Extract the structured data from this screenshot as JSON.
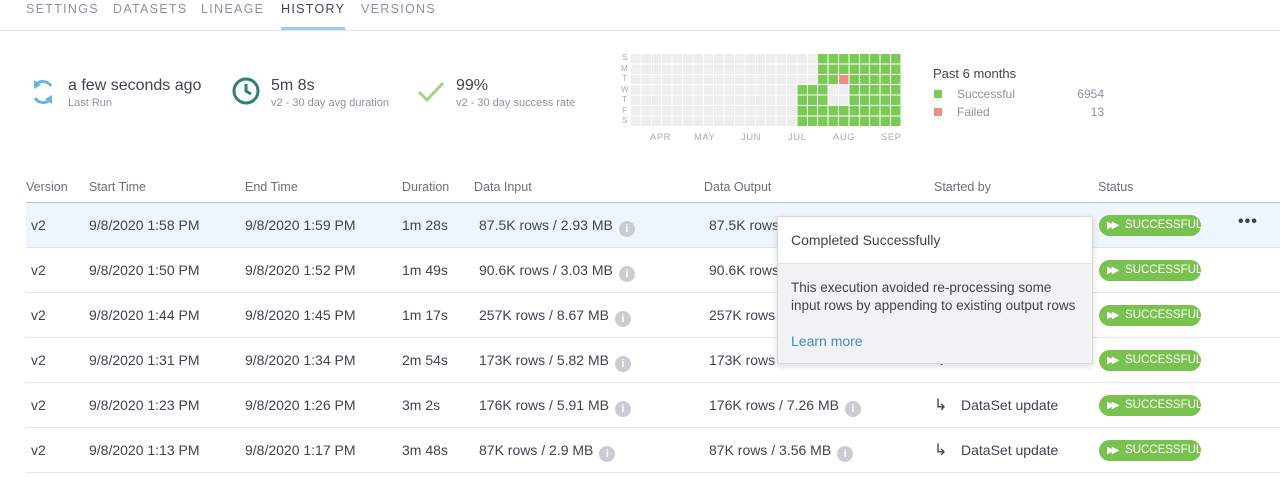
{
  "tabs": [
    {
      "label": "SETTINGS",
      "active": false
    },
    {
      "label": "DATASETS",
      "active": false
    },
    {
      "label": "LINEAGE",
      "active": false
    },
    {
      "label": "HISTORY",
      "active": true
    },
    {
      "label": "VERSIONS",
      "active": false
    }
  ],
  "stats": {
    "last_run": {
      "value": "a few seconds ago",
      "label": "Last Run",
      "icon": "refresh-icon"
    },
    "duration": {
      "value": "5m 8s",
      "label": "v2 - 30 day avg duration",
      "icon": "clock-icon"
    },
    "success": {
      "value": "99%",
      "label": "v2 - 30 day success rate",
      "icon": "checkmark-icon"
    }
  },
  "heatmap": {
    "day_labels": [
      "S",
      "M",
      "T",
      "W",
      "T",
      "F",
      "S"
    ],
    "months": [
      "APR",
      "MAY",
      "JUN",
      "JUL",
      "AUG",
      "SEP"
    ],
    "colors": {
      "empty": "#eeeeee",
      "success": "#7acb55",
      "failed": "#ef8c85"
    }
  },
  "legend": {
    "title": "Past 6 months",
    "items": [
      {
        "label": "Successful",
        "count": "6954",
        "color": "#7acb55"
      },
      {
        "label": "Failed",
        "count": "13",
        "color": "#ef8c85"
      }
    ]
  },
  "table": {
    "headers": [
      "Version",
      "Start Time",
      "End Time",
      "Duration",
      "Data Input",
      "Data Output",
      "Started by",
      "Status"
    ],
    "rows": [
      {
        "version": "v2",
        "start": "9/8/2020 1:58 PM",
        "end": "9/8/2020 1:59 PM",
        "duration": "1m 28s",
        "input": "87.5K rows / 2.93 MB",
        "output": "87.5K rows",
        "started_by": "",
        "status": "SUCCESSFUL"
      },
      {
        "version": "v2",
        "start": "9/8/2020 1:50 PM",
        "end": "9/8/2020 1:52 PM",
        "duration": "1m 49s",
        "input": "90.6K rows / 3.03 MB",
        "output": "90.6K rows",
        "started_by": "",
        "status": "SUCCESSFUL"
      },
      {
        "version": "v2",
        "start": "9/8/2020 1:44 PM",
        "end": "9/8/2020 1:45 PM",
        "duration": "1m 17s",
        "input": "257K rows / 8.67 MB",
        "output": "257K rows",
        "started_by": "",
        "status": "SUCCESSFUL"
      },
      {
        "version": "v2",
        "start": "9/8/2020 1:31 PM",
        "end": "9/8/2020 1:34 PM",
        "duration": "2m 54s",
        "input": "173K rows / 5.82 MB",
        "output": "173K rows",
        "started_by": "",
        "status": "SUCCESSFUL"
      },
      {
        "version": "v2",
        "start": "9/8/2020 1:23 PM",
        "end": "9/8/2020 1:26 PM",
        "duration": "3m 2s",
        "input": "176K rows / 5.91 MB",
        "output": "176K rows / 7.26 MB",
        "started_by": "DataSet update",
        "status": "SUCCESSFUL"
      },
      {
        "version": "v2",
        "start": "9/8/2020 1:13 PM",
        "end": "9/8/2020 1:17 PM",
        "duration": "3m 48s",
        "input": "87K rows / 2.9 MB",
        "output": "87K rows / 3.56 MB",
        "started_by": "DataSet update",
        "status": "SUCCESSFUL"
      }
    ]
  },
  "tooltip": {
    "title": "Completed Successfully",
    "body": "This execution avoided re-processing some input rows by appending to existing output rows",
    "link": "Learn more"
  },
  "colors": {
    "accent": "#99ccee",
    "success": "#79c24f",
    "link": "#3d8ccc"
  }
}
